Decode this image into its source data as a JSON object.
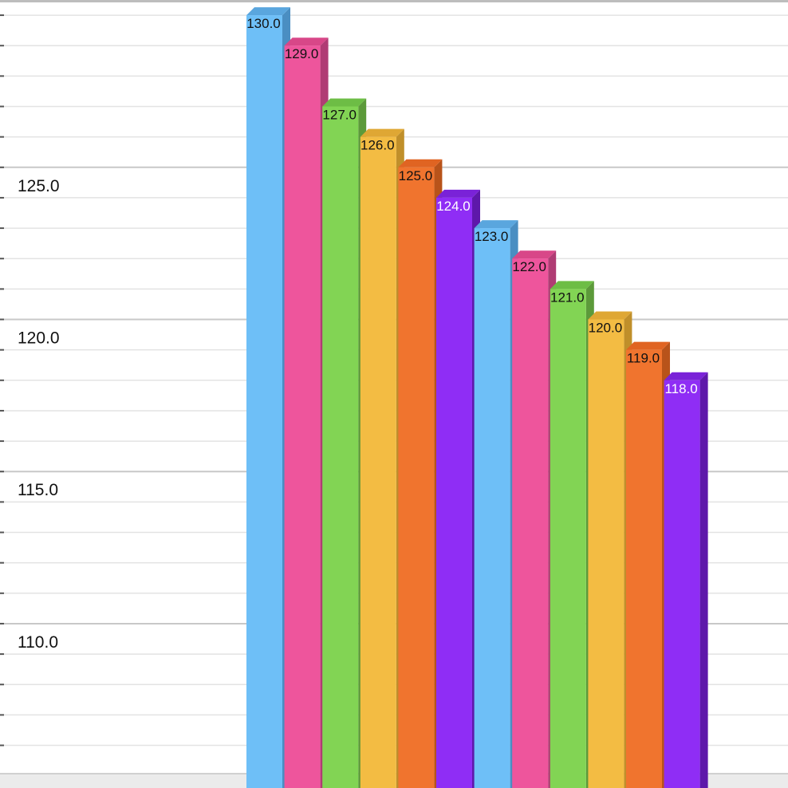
{
  "chart_data": {
    "type": "bar",
    "title": "",
    "xlabel": "",
    "ylabel": "",
    "ylim": [
      105.07,
      130.5
    ],
    "y_ticks": [
      {
        "value": 125,
        "label": "125.0"
      },
      {
        "value": 120,
        "label": "120.0"
      },
      {
        "value": 115,
        "label": "115.0"
      },
      {
        "value": 110,
        "label": "110.0"
      }
    ],
    "minor_step": 1,
    "grid": true,
    "style": "3d",
    "values": [
      130.0,
      129.0,
      127.0,
      126.0,
      125.0,
      124.0,
      123.0,
      122.0,
      121.0,
      120.0,
      119.0,
      118.0
    ],
    "value_labels": [
      "130.0",
      "129.0",
      "127.0",
      "126.0",
      "125.0",
      "124.0",
      "123.0",
      "122.0",
      "121.0",
      "120.0",
      "119.0",
      "118.0"
    ],
    "colors": [
      "#6ebff7",
      "#ee559c",
      "#82d454",
      "#f3bc43",
      "#f0742e",
      "#8f2df5"
    ],
    "side_colors": [
      "#4a8ec2",
      "#b03c74",
      "#5c9a3a",
      "#c08f2a",
      "#b8531a",
      "#5e18aa"
    ],
    "top_colors": [
      "#5aa6de",
      "#d84788",
      "#6dbd45",
      "#dfa734",
      "#e06422",
      "#7a22d8"
    ],
    "label_colors": [
      "#111111",
      "#111111",
      "#111111",
      "#111111",
      "#111111",
      "#ffffff"
    ]
  }
}
